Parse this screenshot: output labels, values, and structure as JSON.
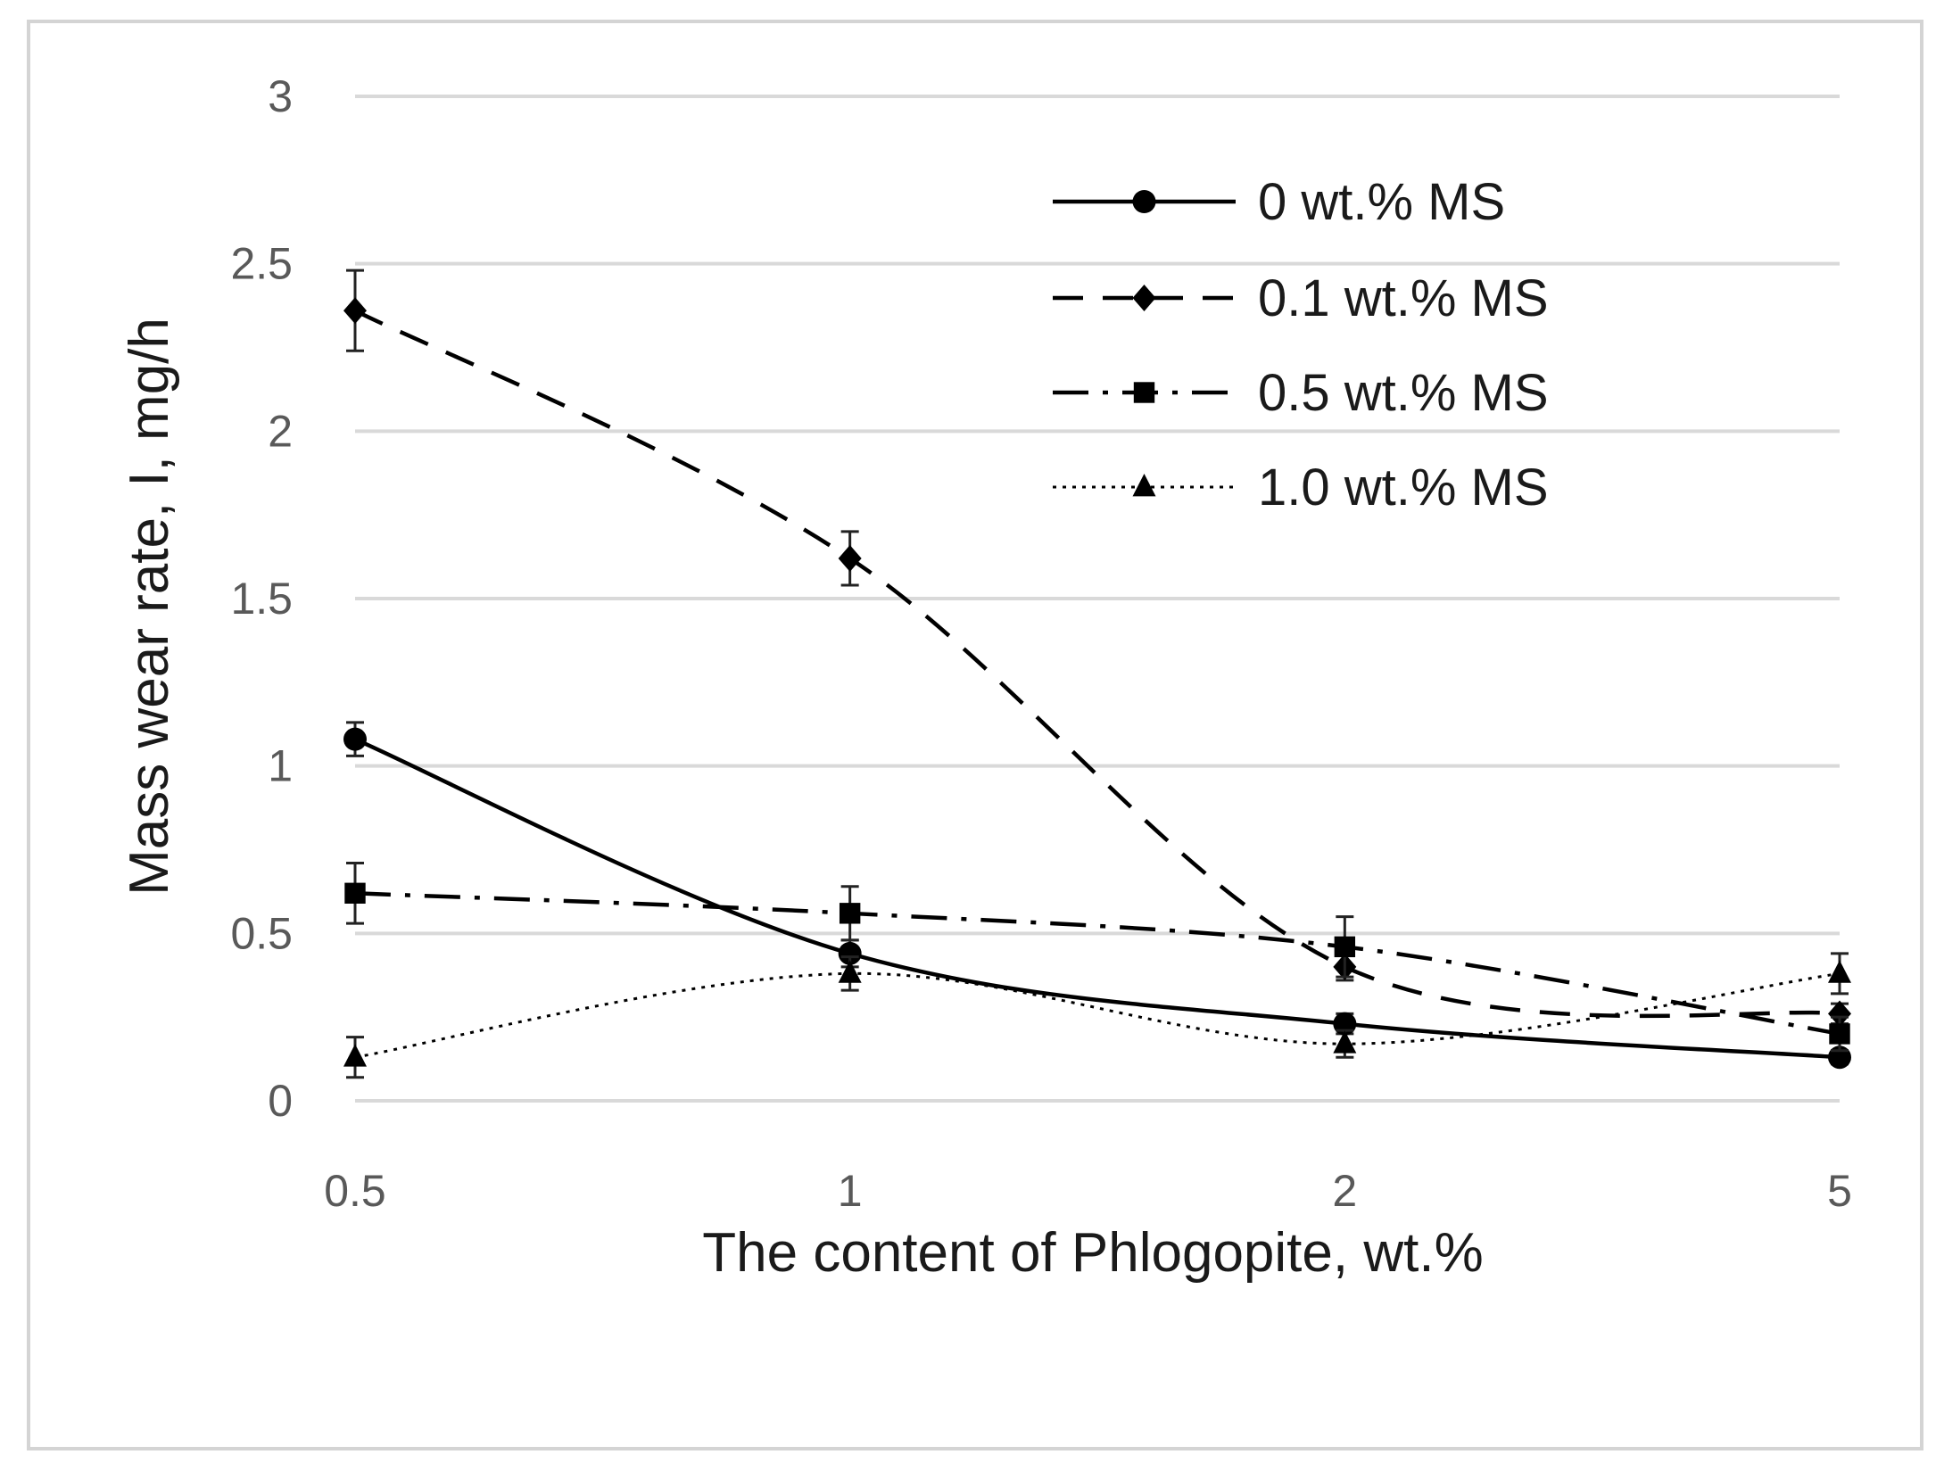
{
  "chart_data": {
    "type": "line",
    "title": "",
    "xlabel": "The content of Phlogopite, wt.%",
    "ylabel": "Mass wear rate, I, mg/h",
    "categories": [
      "0.5",
      "1",
      "2",
      "5"
    ],
    "ylim": [
      0,
      3
    ],
    "yticks": [
      "0",
      "0.5",
      "1",
      "1.5",
      "2",
      "2.5",
      "3"
    ],
    "grid": true,
    "legend_position": "top-right",
    "series": [
      {
        "name": "0  wt.% MS",
        "values": [
          1.08,
          0.44,
          0.23,
          0.13
        ],
        "errors": [
          0.05,
          0.04,
          0.03,
          0.02
        ],
        "marker": "circle",
        "dash": "solid"
      },
      {
        "name": "0.1 wt.% MS",
        "values": [
          2.36,
          1.62,
          0.4,
          0.26
        ],
        "errors": [
          0.12,
          0.08,
          0.04,
          0.03
        ],
        "marker": "diamond",
        "dash": "dashed"
      },
      {
        "name": "0.5 wt.% MS",
        "values": [
          0.62,
          0.56,
          0.46,
          0.2
        ],
        "errors": [
          0.09,
          0.08,
          0.09,
          0.05
        ],
        "marker": "square",
        "dash": "dashdot"
      },
      {
        "name": "1.0 wt.% MS",
        "values": [
          0.13,
          0.38,
          0.17,
          0.38
        ],
        "errors": [
          0.06,
          0.05,
          0.04,
          0.06
        ],
        "marker": "triangle",
        "dash": "dotted"
      }
    ]
  }
}
